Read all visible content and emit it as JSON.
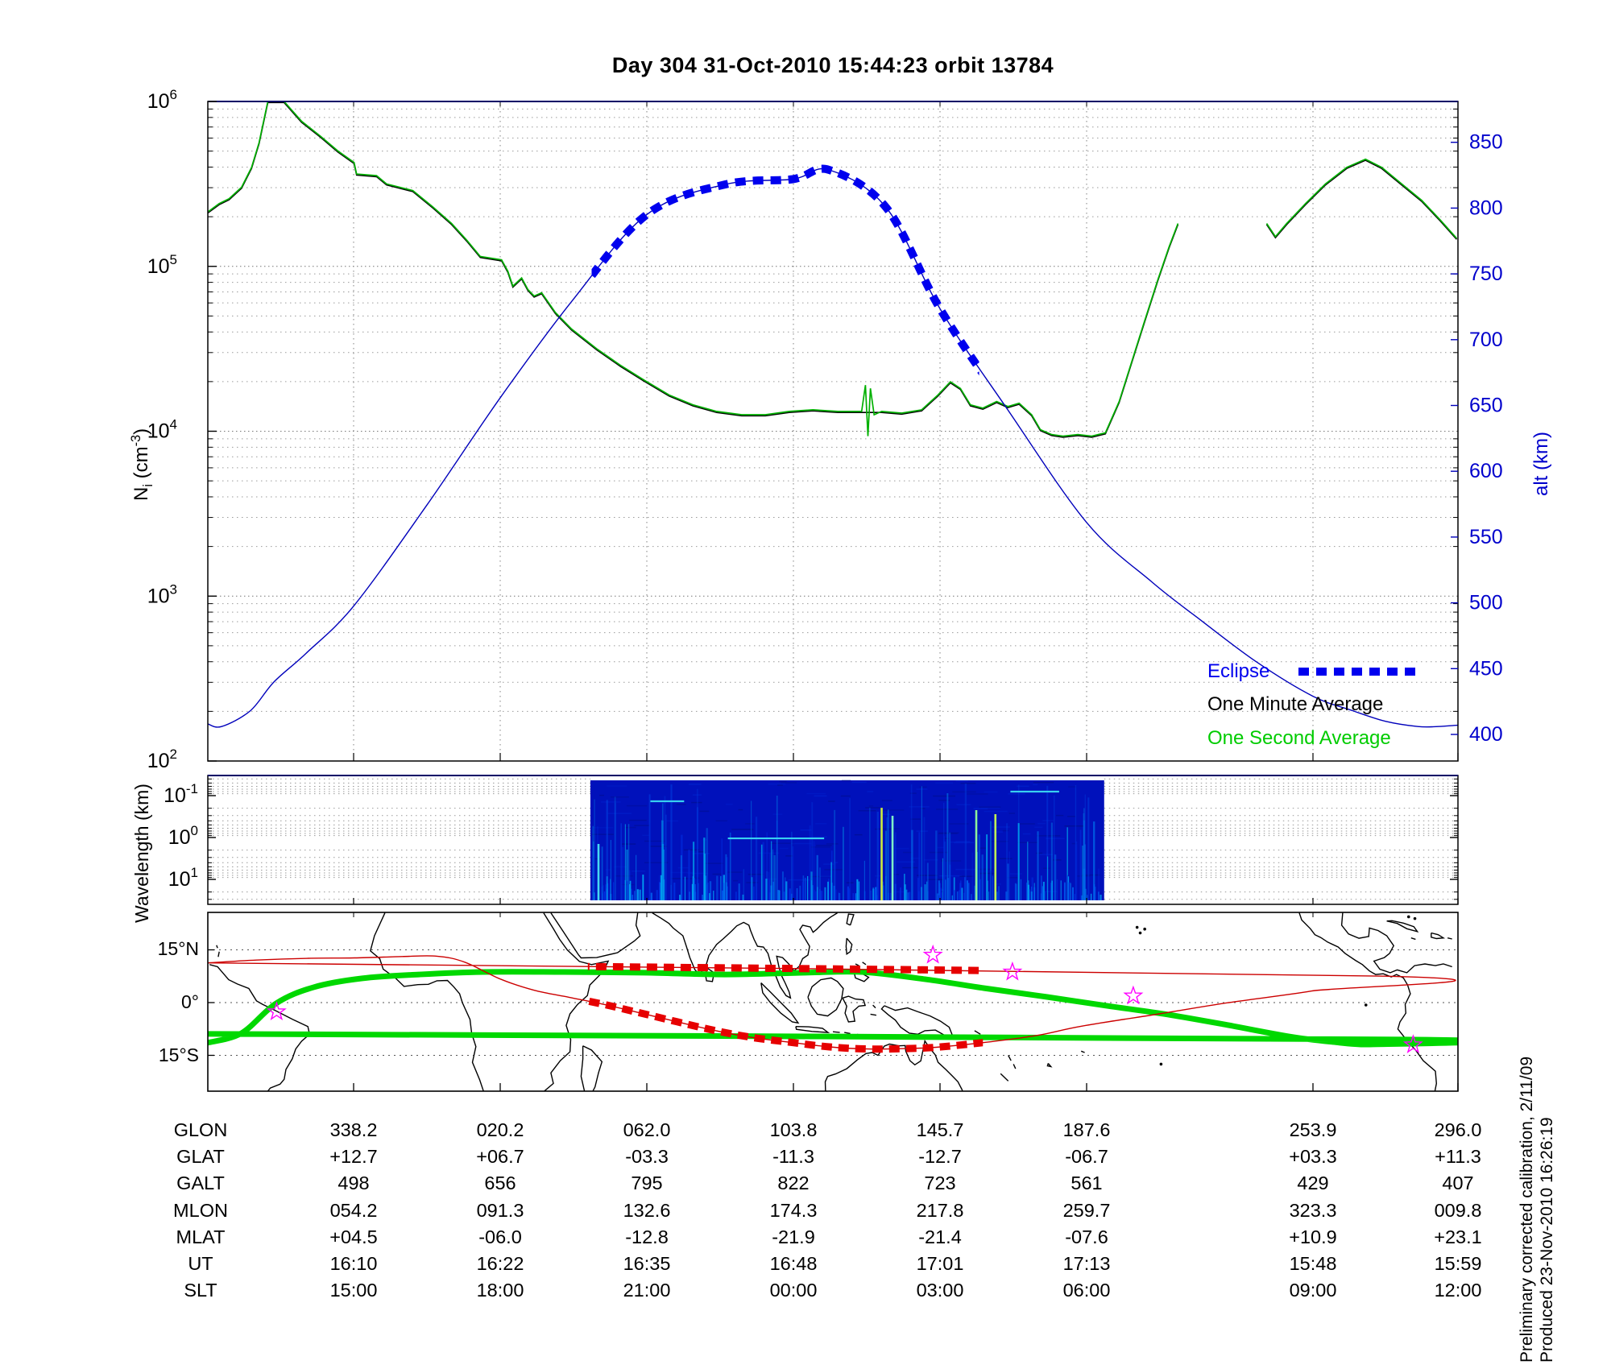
{
  "title": "Day 304  31-Oct-2010 15:44:23   orbit 13784",
  "legend": {
    "eclipse": "Eclipse",
    "one_minute": "One Minute Average",
    "one_second": "One Second Average"
  },
  "axes": {
    "ni": {
      "label_main": "N",
      "label_sub": "i",
      "label_mid": " (cm",
      "label_sup": "-3",
      "label_end": ")",
      "tick_exponents": [
        6,
        5,
        4,
        3,
        2
      ],
      "range_log10": [
        2,
        6
      ]
    },
    "alt": {
      "label": "alt (km)",
      "ticks": [
        850,
        800,
        750,
        700,
        650,
        600,
        550,
        500,
        450,
        400
      ]
    },
    "wavelength": {
      "label": "Wavelength (km)",
      "tick_exponents": [
        -1,
        0,
        1
      ]
    },
    "map": {
      "lat_tick_labels": [
        "15°N",
        "0°",
        "15°S"
      ],
      "lat_ticks_deg": [
        15,
        0,
        -15
      ]
    }
  },
  "chart_data": [
    {
      "type": "line",
      "panel": "ion-density-and-altitude",
      "ylabel_left": "Ni (cm-3)",
      "ylabel_right": "alt (km)",
      "ylim_left_log10": [
        2,
        6
      ],
      "ylim_right_km": [
        400,
        884
      ],
      "grid": "log minor dotted",
      "legend_position": "lower right inside",
      "series": [
        {
          "name": "One Second Average",
          "color": "#00b000",
          "points_xfrac_log10ni": [
            [
              0.0,
              5.33
            ],
            [
              0.009,
              5.38
            ],
            [
              0.017,
              5.41
            ],
            [
              0.027,
              5.48
            ],
            [
              0.035,
              5.6
            ],
            [
              0.041,
              5.75
            ],
            [
              0.048,
              6.0
            ],
            [
              0.061,
              6.0
            ],
            [
              0.075,
              5.88
            ],
            [
              0.09,
              5.79
            ],
            [
              0.104,
              5.7
            ],
            [
              0.117,
              5.63
            ],
            [
              0.119,
              5.56
            ],
            [
              0.135,
              5.55
            ],
            [
              0.143,
              5.5
            ],
            [
              0.164,
              5.46
            ],
            [
              0.18,
              5.36
            ],
            [
              0.195,
              5.26
            ],
            [
              0.207,
              5.16
            ],
            [
              0.218,
              5.06
            ],
            [
              0.235,
              5.04
            ],
            [
              0.24,
              4.97
            ],
            [
              0.244,
              4.88
            ],
            [
              0.251,
              4.93
            ],
            [
              0.256,
              4.86
            ],
            [
              0.261,
              4.82
            ],
            [
              0.267,
              4.84
            ],
            [
              0.278,
              4.72
            ],
            [
              0.291,
              4.62
            ],
            [
              0.311,
              4.5
            ],
            [
              0.33,
              4.4
            ],
            [
              0.349,
              4.31
            ],
            [
              0.369,
              4.22
            ],
            [
              0.388,
              4.16
            ],
            [
              0.407,
              4.12
            ],
            [
              0.427,
              4.1
            ],
            [
              0.446,
              4.1
            ],
            [
              0.465,
              4.12
            ],
            [
              0.484,
              4.13
            ],
            [
              0.504,
              4.12
            ],
            [
              0.523,
              4.12
            ],
            [
              0.526,
              4.28
            ],
            [
              0.528,
              3.97
            ],
            [
              0.53,
              4.26
            ],
            [
              0.533,
              4.1
            ],
            [
              0.539,
              4.12
            ],
            [
              0.555,
              4.11
            ],
            [
              0.571,
              4.13
            ],
            [
              0.584,
              4.22
            ],
            [
              0.594,
              4.3
            ],
            [
              0.602,
              4.26
            ],
            [
              0.61,
              4.16
            ],
            [
              0.62,
              4.14
            ],
            [
              0.631,
              4.18
            ],
            [
              0.64,
              4.15
            ],
            [
              0.649,
              4.17
            ],
            [
              0.659,
              4.1
            ],
            [
              0.666,
              4.01
            ],
            [
              0.675,
              3.98
            ],
            [
              0.684,
              3.97
            ],
            [
              0.696,
              3.98
            ],
            [
              0.707,
              3.97
            ],
            [
              0.718,
              3.99
            ],
            [
              0.729,
              4.18
            ],
            [
              0.739,
              4.42
            ],
            [
              0.749,
              4.66
            ],
            [
              0.76,
              4.92
            ],
            [
              0.769,
              5.12
            ],
            [
              0.776,
              5.26
            ],
            null,
            [
              0.847,
              5.26
            ],
            [
              0.854,
              5.18
            ],
            [
              0.863,
              5.26
            ],
            [
              0.878,
              5.38
            ],
            [
              0.894,
              5.5
            ],
            [
              0.911,
              5.6
            ],
            [
              0.926,
              5.65
            ],
            [
              0.939,
              5.6
            ],
            [
              0.955,
              5.5
            ],
            [
              0.971,
              5.4
            ],
            [
              0.986,
              5.28
            ],
            [
              0.999,
              5.17
            ]
          ]
        },
        {
          "name": "One Minute Average",
          "color": "#000000",
          "note": "overlaps the one-second curve; narrow spikes absent"
        },
        {
          "name": "satellite altitude",
          "color": "#0000bb",
          "points_xfrac_alt_km": [
            [
              0.0,
              408
            ],
            [
              0.011,
              406
            ],
            [
              0.034,
              418
            ],
            [
              0.053,
              440
            ],
            [
              0.079,
              462
            ],
            [
              0.117,
              498
            ],
            [
              0.175,
              574
            ],
            [
              0.234,
              656
            ],
            [
              0.291,
              729
            ],
            [
              0.351,
              795
            ],
            [
              0.414,
              818
            ],
            [
              0.468,
              822
            ],
            [
              0.497,
              829
            ],
            [
              0.543,
              800
            ],
            [
              0.586,
              723
            ],
            [
              0.639,
              648
            ],
            [
              0.703,
              561
            ],
            [
              0.755,
              516
            ],
            [
              0.794,
              487
            ],
            [
              0.839,
              455
            ],
            [
              0.884,
              429
            ],
            [
              0.916,
              418
            ],
            [
              0.942,
              410
            ],
            [
              0.968,
              406
            ],
            [
              0.984,
              406
            ],
            [
              1.0,
              407
            ]
          ]
        },
        {
          "name": "Eclipse",
          "color": "#0000ee",
          "style": "thick dashed overlay on altitude curve",
          "x_frac_span": [
            0.307,
            0.617
          ]
        }
      ]
    },
    {
      "type": "heatmap",
      "panel": "wavelength-spectrogram",
      "ylabel": "Wavelength (km)",
      "y_log10_km_extent": [
        -1.45,
        1.6
      ],
      "x_frac_extent": [
        0.306,
        0.717
      ],
      "base_color": "#0011bb",
      "bright_verticals": [
        {
          "x_frac": 0.3125,
          "top_log10_km": 0.154,
          "color": "#46d8f0"
        },
        {
          "x_frac": 0.539,
          "top_log10_km": -0.71,
          "color": "#cdeb3f"
        },
        {
          "x_frac": 0.5477,
          "top_log10_km": -0.52,
          "color": "#7ef0c8"
        },
        {
          "x_frac": 0.6147,
          "top_log10_km": -0.654,
          "color": "#8df09a"
        },
        {
          "x_frac": 0.63,
          "top_log10_km": -0.558,
          "color": "#bdee55"
        }
      ],
      "bright_horizontals": [
        {
          "x_frac_span": [
            0.416,
            0.493
          ],
          "log10_km": 0.02
        },
        {
          "x_frac_span": [
            0.354,
            0.381
          ],
          "log10_km": -0.865
        },
        {
          "x_frac_span": [
            0.642,
            0.681
          ],
          "log10_km": -1.096
        }
      ]
    },
    {
      "type": "map",
      "panel": "ground-track-map",
      "lat_range_deg": [
        -25.5,
        25.5
      ],
      "lon_left_edge_deg_east": 296.0,
      "magnetic_equator_lonlat": [
        [
          296,
          -11.4
        ],
        [
          305.7,
          -8.7
        ],
        [
          315.7,
          -0.2
        ],
        [
          326.6,
          4.4
        ],
        [
          340.5,
          6.9
        ],
        [
          356.8,
          8.0
        ],
        [
          375.3,
          8.7
        ],
        [
          398.5,
          8.7
        ],
        [
          421.7,
          8.5
        ],
        [
          444.9,
          8.0
        ],
        [
          468.1,
          8.5
        ],
        [
          484.3,
          8.7
        ],
        [
          502.9,
          6.6
        ],
        [
          519.6,
          4.1
        ],
        [
          537.7,
          1.6
        ],
        [
          556.2,
          -1.1
        ],
        [
          572.4,
          -3.4
        ],
        [
          588.7,
          -6.2
        ],
        [
          607.2,
          -9.6
        ],
        [
          620,
          -11.2
        ],
        [
          630.4,
          -11.9
        ],
        [
          640.8,
          -10.5
        ],
        [
          656,
          -8.9
        ]
      ],
      "ground_track_lonlat": [
        [
          296,
          11.3
        ],
        [
          310,
          12.1
        ],
        [
          325,
          12.6
        ],
        [
          338.2,
          12.7
        ],
        [
          352,
          13.1
        ],
        [
          362,
          13.2
        ],
        [
          370,
          11.5
        ],
        [
          380.2,
          6.7
        ],
        [
          390,
          3.5
        ],
        [
          400,
          1.5
        ],
        [
          410,
          -0.5
        ],
        [
          422,
          -3.3
        ],
        [
          440,
          -7.5
        ],
        [
          452,
          -9.8
        ],
        [
          463.8,
          -11.3
        ],
        [
          475,
          -12.6
        ],
        [
          486,
          -13.2
        ],
        [
          496,
          -13.1
        ],
        [
          505.7,
          -12.7
        ],
        [
          520,
          -11.3
        ],
        [
          535,
          -9.3
        ],
        [
          547.6,
          -6.7
        ],
        [
          570,
          -3.2
        ],
        [
          590,
          0.0
        ],
        [
          613.9,
          3.3
        ],
        [
          635,
          7.5
        ],
        [
          656,
          11.3
        ]
      ],
      "eclipse_x_frac_span": [
        0.304,
        0.62
      ],
      "station_markers_lonlat": [
        [
          315.8,
          -2.6
        ],
        [
          144.8,
          13.5
        ],
        [
          167.7,
          8.7
        ],
        [
          202.5,
          1.9
        ],
        [
          283.1,
          -12.0
        ]
      ]
    }
  ],
  "table": {
    "row_headers": [
      "GLON",
      "GLAT",
      "GALT",
      "MLON",
      "MLAT",
      "UT",
      "SLT"
    ],
    "columns": [
      [
        "338.2",
        "+12.7",
        "498",
        "054.2",
        "+04.5",
        "16:10",
        "15:00"
      ],
      [
        "020.2",
        "+06.7",
        "656",
        "091.3",
        "-06.0",
        "16:22",
        "18:00"
      ],
      [
        "062.0",
        "-03.3",
        "795",
        "132.6",
        "-12.8",
        "16:35",
        "21:00"
      ],
      [
        "103.8",
        "-11.3",
        "822",
        "174.3",
        "-21.9",
        "16:48",
        "00:00"
      ],
      [
        "145.7",
        "-12.7",
        "723",
        "217.8",
        "-21.4",
        "17:01",
        "03:00"
      ],
      [
        "187.6",
        "-06.7",
        "561",
        "259.7",
        "-07.6",
        "17:13",
        "06:00"
      ],
      [
        "253.9",
        "+03.3",
        "429",
        "323.3",
        "+10.9",
        "15:48",
        "09:00"
      ],
      [
        "296.0",
        "+11.3",
        "407",
        "009.8",
        "+23.1",
        "15:59",
        "12:00"
      ]
    ]
  },
  "annotations": {
    "line1": "Preliminary corrected calibration, 2/11/09",
    "line2": "Produced 23-Nov-2010 16:26:19"
  },
  "colors": {
    "eclipse_blue": "#0000ee",
    "one_minute_black": "#000000",
    "one_second_green": "#00b000",
    "altitude_blue": "#0000bb",
    "alt_axis_blue": "#0000cc",
    "map_equator_green": "#00d800",
    "ground_track_red": "#cc0000",
    "eclipse_track_red": "#e60000",
    "station_magenta": "#ff00ff",
    "spectrogram_base": "#0011bb"
  }
}
